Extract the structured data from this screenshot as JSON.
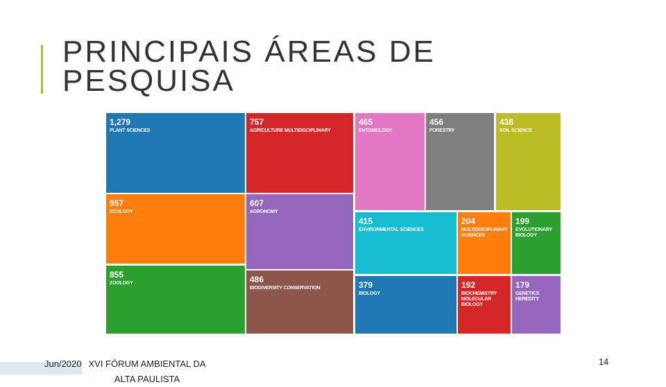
{
  "slide": {
    "title": "PRINCIPAIS ÁREAS DE PESQUISA",
    "footer_date": "Jun/2020",
    "footer_text": "XVI FÓRUM AMBIENTAL DA ALTA PAULISTA",
    "page_number": "14"
  },
  "chart_data": {
    "type": "treemap",
    "categories": [
      "PLANT SCIENCES",
      "AGRICULTURE MULTIDISCIPLINARY",
      "ENTOMOLOGY",
      "FORESTRY",
      "SOIL SCIENCE",
      "ECOLOGY",
      "AGRONOMY",
      "ENVIRONMENTAL SCIENCES",
      "MULTIDISCIPLINARY SCIENCES",
      "EVOLUTIONARY BIOLOGY",
      "ZOOLOGY",
      "BIODIVERSITY CONSERVATION",
      "BIOLOGY",
      "BIOCHEMISTRY MOLECULAR BIOLOGY",
      "GENETICS HEREDITY"
    ],
    "values": [
      1279,
      757,
      465,
      456,
      438,
      957,
      607,
      415,
      204,
      199,
      855,
      486,
      379,
      192,
      179
    ],
    "value_labels": [
      "1,279",
      "757",
      "465",
      "456",
      "438",
      "957",
      "607",
      "415",
      "204",
      "199",
      "855",
      "486",
      "379",
      "192",
      "179"
    ],
    "colors": [
      "#1f77b4",
      "#d62728",
      "#e377c2",
      "#7f7f7f",
      "#bcbd22",
      "#ff7f0e",
      "#9467bd",
      "#17becf",
      "#ff7f0e",
      "#2ca02c",
      "#2ca02c",
      "#8c564b",
      "#1f77b4",
      "#d62728",
      "#9467bd"
    ]
  }
}
